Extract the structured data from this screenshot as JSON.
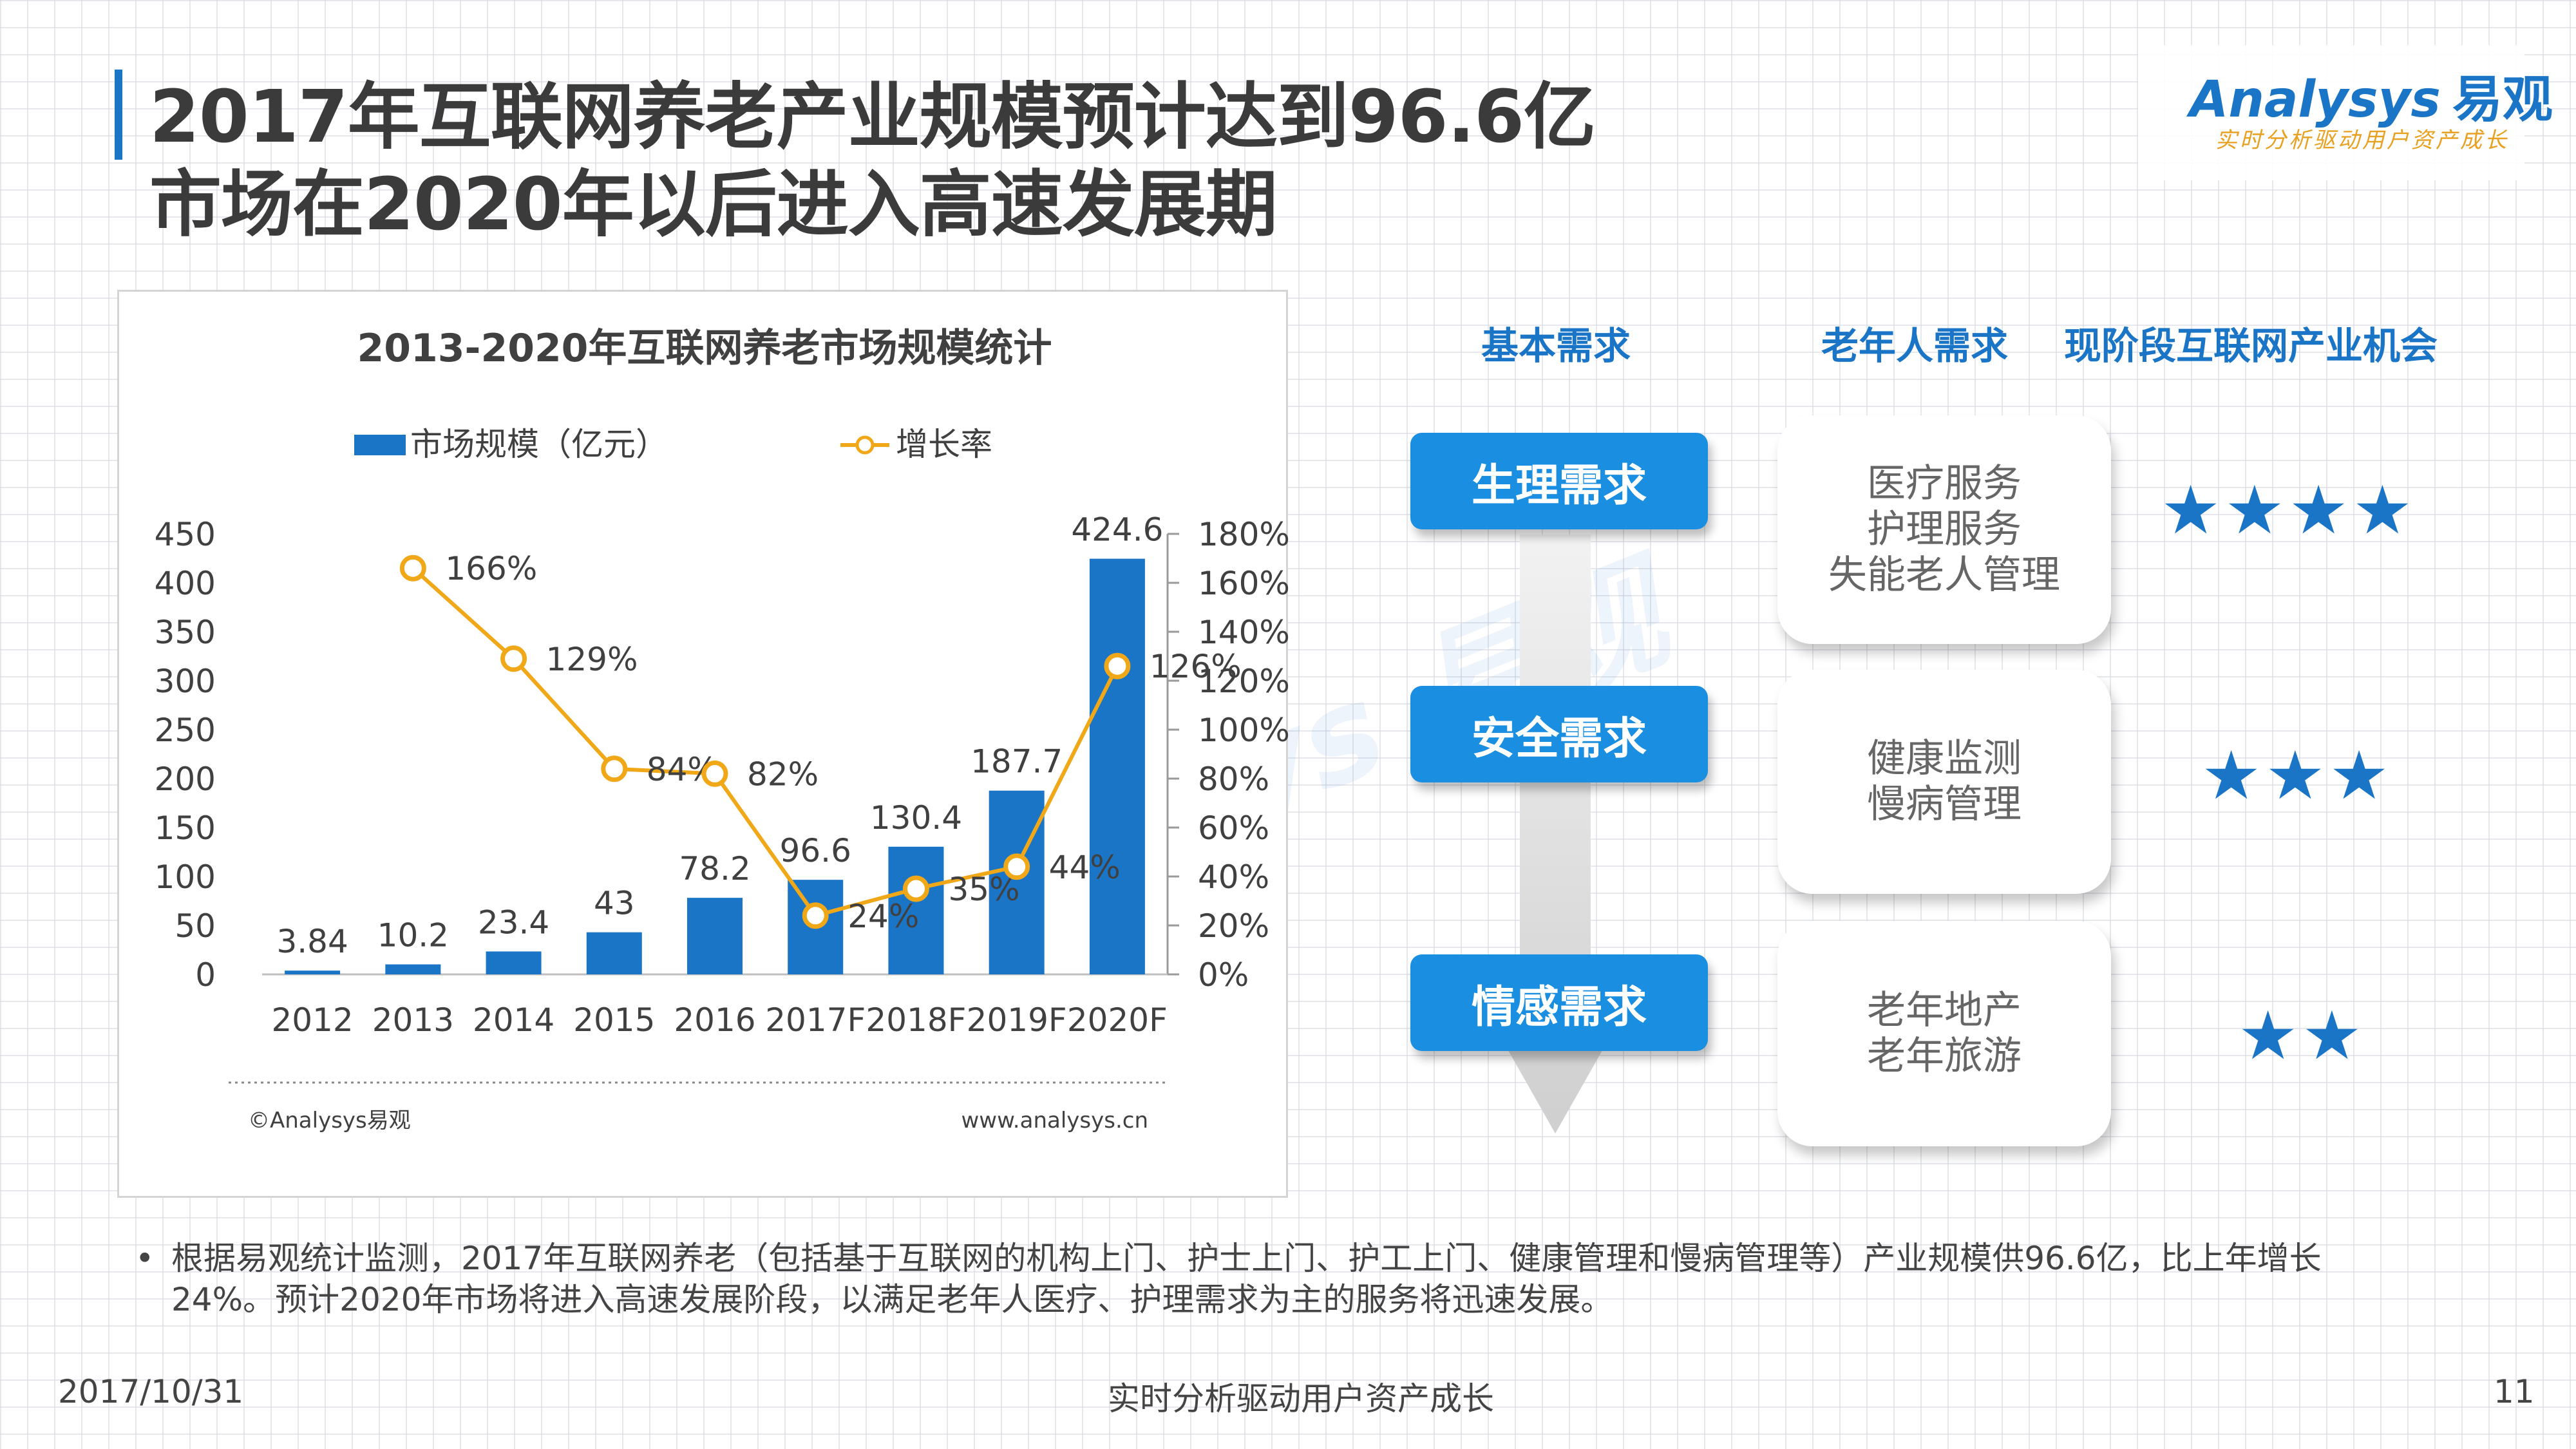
{
  "title": {
    "line1": "2017年互联网养老产业规模预计达到96.6亿",
    "line2": "市场在2020年以后进入高速发展期"
  },
  "logo": {
    "name": "Analysys",
    "cn": "易观",
    "slogan": "实时分析驱动用户资产成长"
  },
  "chart_data": {
    "type": "bar",
    "title": "2013-2020年互联网养老市场规模统计",
    "categories": [
      "2012",
      "2013",
      "2014",
      "2015",
      "2016",
      "2017F",
      "2018F",
      "2019F",
      "2020F"
    ],
    "series": [
      {
        "name": "市场规模（亿元）",
        "type": "bar",
        "axis": "left",
        "color": "#1a75c7",
        "values": [
          3.84,
          10.2,
          23.4,
          43,
          78.2,
          96.6,
          130.4,
          187.7,
          424.6
        ],
        "labels": [
          "3.84",
          "10.2",
          "23.4",
          "43",
          "78.2",
          "96.6",
          "130.4",
          "187.7",
          "424.6"
        ]
      },
      {
        "name": "增长率",
        "type": "line",
        "axis": "right",
        "color": "#f0a818",
        "values": [
          null,
          166,
          129,
          84,
          82,
          24,
          35,
          44,
          126
        ],
        "labels": [
          "",
          "166%",
          "129%",
          "84%",
          "82%",
          "24%",
          "35%",
          "44%",
          "126%"
        ]
      }
    ],
    "y_left": {
      "min": 0,
      "max": 450,
      "ticks": [
        "0",
        "50",
        "100",
        "150",
        "200",
        "250",
        "300",
        "350",
        "400",
        "450"
      ]
    },
    "y_right": {
      "min": 0,
      "max": 180,
      "ticks": [
        "0%",
        "20%",
        "40%",
        "60%",
        "80%",
        "100%",
        "120%",
        "140%",
        "160%",
        "180%"
      ]
    },
    "legend_position": "top",
    "grid": false,
    "source_left": "©Analysys易观",
    "source_right": "www.analysys.cn"
  },
  "demands": {
    "headers": [
      "基本需求",
      "老年人需求",
      "现阶段互联网产业机会"
    ],
    "rows": [
      {
        "need": "生理需求",
        "items": [
          "医疗服务",
          "护理服务",
          "失能老人管理"
        ],
        "stars": "★★★★"
      },
      {
        "need": "安全需求",
        "items": [
          "健康监测",
          "慢病管理"
        ],
        "stars": "★★★"
      },
      {
        "need": "情感需求",
        "items": [
          "老年地产",
          "老年旅游"
        ],
        "stars": "★★"
      }
    ]
  },
  "note": {
    "bullet": "•",
    "text": "根据易观统计监测，2017年互联网养老（包括基于互联网的机构上门、护士上门、护工上门、健康管理和慢病管理等）产业规模供96.6亿，比上年增长24%。预计2020年市场将进入高速发展阶段，以满足老年人医疗、护理需求为主的服务将迅速发展。"
  },
  "footer": {
    "date": "2017/10/31",
    "slogan": "实时分析驱动用户资产成长",
    "page": "11"
  },
  "colors": {
    "accent": "#1a75c7",
    "line": "#f0a818",
    "button": "#1a8ee0"
  }
}
